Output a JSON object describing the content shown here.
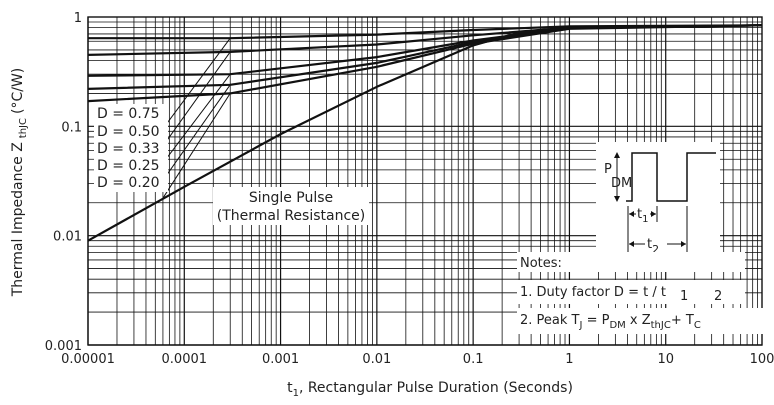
{
  "chart_data": {
    "type": "line",
    "xscale": "log",
    "yscale": "log",
    "xlim": [
      1e-05,
      100
    ],
    "ylim": [
      0.001,
      1
    ],
    "grid": true,
    "xlabel_main": "t",
    "xlabel_sub": "1",
    "xlabel_rest": ", Rectangular Pulse Duration (Seconds)",
    "ylabel_main": "Thermal Impedance Z",
    "ylabel_sub": "thJC",
    "ylabel_rest": "(°C/W)",
    "x_ticks": [
      {
        "value": 1e-05,
        "label": "0.00001"
      },
      {
        "value": 0.0001,
        "label": "0.0001"
      },
      {
        "value": 0.001,
        "label": "0.001"
      },
      {
        "value": 0.01,
        "label": "0.01"
      },
      {
        "value": 0.1,
        "label": "0.1"
      },
      {
        "value": 1,
        "label": "1"
      },
      {
        "value": 10,
        "label": "10"
      },
      {
        "value": 100,
        "label": "100"
      }
    ],
    "y_ticks": [
      {
        "value": 1,
        "label": "1"
      },
      {
        "value": 0.1,
        "label": "0.1"
      },
      {
        "value": 0.01,
        "label": "0.01"
      },
      {
        "value": 0.001,
        "label": "0.001"
      }
    ],
    "series": [
      {
        "name": "D = 0.75",
        "x": [
          1e-05,
          0.0003,
          0.01,
          0.1,
          1,
          100
        ],
        "y": [
          0.64,
          0.64,
          0.69,
          0.76,
          0.82,
          0.84
        ]
      },
      {
        "name": "D = 0.50",
        "x": [
          1e-05,
          0.0003,
          0.01,
          0.1,
          1,
          100
        ],
        "y": [
          0.45,
          0.48,
          0.56,
          0.68,
          0.8,
          0.84
        ]
      },
      {
        "name": "D = 0.33",
        "x": [
          1e-05,
          0.0003,
          0.01,
          0.1,
          1,
          100
        ],
        "y": [
          0.29,
          0.3,
          0.43,
          0.61,
          0.79,
          0.84
        ]
      },
      {
        "name": "D = 0.25",
        "x": [
          1e-05,
          0.0003,
          0.01,
          0.1,
          1,
          100
        ],
        "y": [
          0.22,
          0.24,
          0.38,
          0.59,
          0.79,
          0.84
        ]
      },
      {
        "name": "D = 0.20",
        "x": [
          1e-05,
          0.0003,
          0.01,
          0.1,
          1,
          100
        ],
        "y": [
          0.17,
          0.2,
          0.35,
          0.57,
          0.78,
          0.84
        ]
      },
      {
        "name": "Single Pulse",
        "x": [
          1e-05,
          0.0001,
          0.001,
          0.01,
          0.1,
          0.3,
          1,
          100
        ],
        "y": [
          0.009,
          0.028,
          0.085,
          0.23,
          0.55,
          0.72,
          0.8,
          0.84
        ]
      }
    ],
    "diagonals": [
      {
        "x": [
          0.0003,
          6e-05
        ],
        "y": [
          0.64,
          0.095
        ]
      },
      {
        "x": [
          0.0003,
          6e-05
        ],
        "y": [
          0.48,
          0.066
        ]
      },
      {
        "x": [
          0.0003,
          6e-05
        ],
        "y": [
          0.3,
          0.046
        ]
      },
      {
        "x": [
          0.0003,
          6e-05
        ],
        "y": [
          0.24,
          0.032
        ]
      },
      {
        "x": [
          0.0003,
          6e-05
        ],
        "y": [
          0.2,
          0.022
        ]
      }
    ],
    "series_labels": [
      "D = 0.75",
      "D = 0.50",
      "D = 0.33",
      "D = 0.25",
      "D = 0.20"
    ],
    "single_pulse_label": [
      "Single Pulse",
      "(Thermal Resistance)"
    ],
    "inset": {
      "pdm_main": "P",
      "pdm_sub": "DM",
      "t1_main": "t",
      "t1_sub": "1",
      "t2_main": "t",
      "t2_sub": "2"
    },
    "notes": {
      "title": "Notes:",
      "line1": "1. Duty factor D =  t  / t",
      "line1_sub1": "1",
      "line1_sub2": "2",
      "line2_a": "2. Peak T",
      "line2_a_sub": "J",
      "line2_b": " = P",
      "line2_b_sub": "DM",
      "line2_c": " x Z",
      "line2_c_sub": "thJC",
      "line2_d": "+ T",
      "line2_d_sub": "C"
    },
    "colors": {
      "line": "#111111",
      "grid": "#111111",
      "background": "#ffffff"
    }
  }
}
